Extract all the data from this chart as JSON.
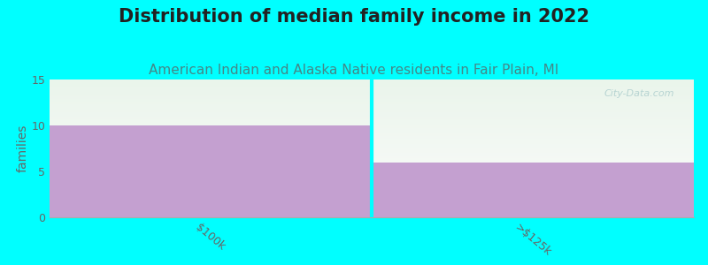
{
  "title": "Distribution of median family income in 2022",
  "subtitle": "American Indian and Alaska Native residents in Fair Plain, MI",
  "categories": [
    "$100k",
    ">$125k"
  ],
  "values": [
    10,
    6
  ],
  "bar_color": "#c4a0d0",
  "background_color": "#00ffff",
  "plot_bg_color_top": "#eaf5eb",
  "plot_bg_color_bottom": "#f8fbf8",
  "ylim": [
    0,
    15
  ],
  "yticks": [
    0,
    5,
    10,
    15
  ],
  "ylabel": "families",
  "title_fontsize": 15,
  "subtitle_fontsize": 11,
  "subtitle_color": "#448888",
  "watermark": "City-Data.com",
  "tick_label_color": "#666666",
  "divider_color": "#00ffff"
}
